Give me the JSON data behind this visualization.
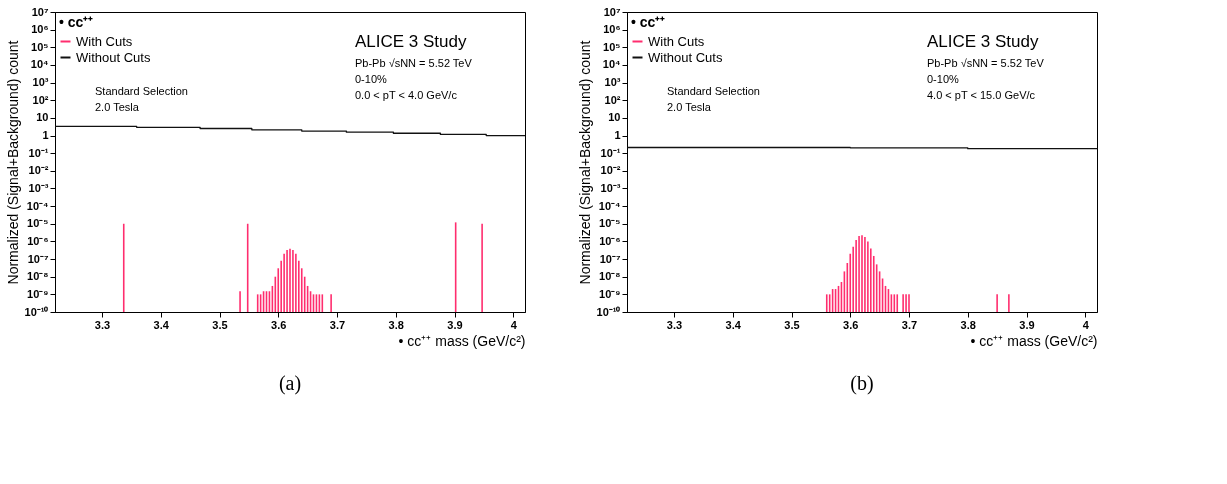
{
  "chart_data": [
    {
      "type": "step",
      "xlabel": "• cc⁺⁺ mass (GeV/c²)",
      "ylabel": "Normalized (Signal+Background) count",
      "legend_title": "• cc⁺⁺",
      "legend": "top left",
      "log": true,
      "grid": false,
      "xlim": [
        3.22,
        4.02
      ],
      "xticks": [
        3.3,
        3.4,
        3.5,
        3.6,
        3.7,
        3.8,
        3.9,
        4
      ],
      "ylim": [
        1e-10,
        10000000.0
      ],
      "yticks": [
        {
          "value": 1e-10,
          "label": "10⁻¹⁰"
        },
        {
          "value": 1e-09,
          "label": "10⁻⁹"
        },
        {
          "value": 1e-08,
          "label": "10⁻⁸"
        },
        {
          "value": 1e-07,
          "label": "10⁻⁷"
        },
        {
          "value": 1e-06,
          "label": "10⁻⁶"
        },
        {
          "value": 1e-05,
          "label": "10⁻⁵"
        },
        {
          "value": 0.0001,
          "label": "10⁻⁴"
        },
        {
          "value": 0.001,
          "label": "10⁻³"
        },
        {
          "value": 0.01,
          "label": "10⁻²"
        },
        {
          "value": 0.1,
          "label": "10⁻¹"
        },
        1,
        10,
        {
          "value": 100,
          "label": "10²"
        },
        {
          "value": 1000,
          "label": "10³"
        },
        {
          "value": 10000,
          "label": "10⁴"
        },
        {
          "value": 100000,
          "label": "10⁵"
        },
        {
          "value": 1000000,
          "label": "10⁶"
        },
        {
          "value": 10000000,
          "label": "10⁷"
        }
      ],
      "series": [
        {
          "name": "With Cuts",
          "type": "bar",
          "color": "#ff2d6e",
          "x": [
            3.337,
            3.535,
            3.548,
            3.565,
            3.57,
            3.575,
            3.58,
            3.585,
            3.59,
            3.595,
            3.6,
            3.605,
            3.61,
            3.615,
            3.62,
            3.625,
            3.63,
            3.635,
            3.64,
            3.645,
            3.65,
            3.655,
            3.66,
            3.665,
            3.67,
            3.675,
            3.69,
            3.902,
            3.947
          ],
          "values": [
            1e-05,
            1.5e-09,
            1e-05,
            1e-09,
            1e-09,
            1.5e-09,
            1.5e-09,
            1.5e-09,
            3e-09,
            1e-08,
            3e-08,
            8e-08,
            2e-07,
            3.3e-07,
            3.8e-07,
            3.3e-07,
            2e-07,
            8e-08,
            3e-08,
            1e-08,
            3e-09,
            1.5e-09,
            1e-09,
            1e-09,
            1e-09,
            1e-09,
            1e-09,
            1.2e-05,
            1e-05
          ]
        },
        {
          "name": "Without Cuts",
          "color": "#111111",
          "x": [
            3.22,
            3.359,
            3.467,
            3.555,
            3.64,
            3.716,
            3.796,
            3.876,
            3.954,
            4.02
          ],
          "values": [
            3.3,
            2.9,
            2.5,
            2.1,
            1.8,
            1.55,
            1.35,
            1.15,
            1.0,
            1.0
          ]
        }
      ],
      "annotations": [
        "Standard Selection",
        "2.0 Tesla",
        "ALICE 3 Study",
        "Pb-Pb √sNN = 5.52 TeV",
        "0-10%",
        "0.0 < pT < 4.0 GeV/c",
        "(a)"
      ]
    },
    {
      "type": "step",
      "xlabel": "• cc⁺⁺ mass (GeV/c²)",
      "ylabel": "Normalized (Signal+Background) count",
      "legend_title": "• cc⁺⁺",
      "legend": "top left",
      "log": true,
      "grid": false,
      "xlim": [
        3.22,
        4.02
      ],
      "xticks": [
        3.3,
        3.4,
        3.5,
        3.6,
        3.7,
        3.8,
        3.9,
        4
      ],
      "ylim": [
        1e-10,
        10000000.0
      ],
      "yticks": [
        {
          "value": 1e-10,
          "label": "10⁻¹⁰"
        },
        {
          "value": 1e-09,
          "label": "10⁻⁹"
        },
        {
          "value": 1e-08,
          "label": "10⁻⁸"
        },
        {
          "value": 1e-07,
          "label": "10⁻⁷"
        },
        {
          "value": 1e-06,
          "label": "10⁻⁶"
        },
        {
          "value": 1e-05,
          "label": "10⁻⁵"
        },
        {
          "value": 0.0001,
          "label": "10⁻⁴"
        },
        {
          "value": 0.001,
          "label": "10⁻³"
        },
        {
          "value": 0.01,
          "label": "10⁻²"
        },
        {
          "value": 0.1,
          "label": "10⁻¹"
        },
        1,
        10,
        {
          "value": 100,
          "label": "10²"
        },
        {
          "value": 1000,
          "label": "10³"
        },
        {
          "value": 10000,
          "label": "10⁴"
        },
        {
          "value": 100000,
          "label": "10⁵"
        },
        {
          "value": 1000000,
          "label": "10⁶"
        },
        {
          "value": 10000000,
          "label": "10⁷"
        }
      ],
      "series": [
        {
          "name": "With Cuts",
          "type": "bar",
          "color": "#ff2d6e",
          "x": [
            3.56,
            3.565,
            3.57,
            3.575,
            3.58,
            3.585,
            3.59,
            3.595,
            3.6,
            3.605,
            3.61,
            3.615,
            3.62,
            3.625,
            3.63,
            3.635,
            3.64,
            3.645,
            3.65,
            3.655,
            3.66,
            3.665,
            3.67,
            3.675,
            3.68,
            3.69,
            3.695,
            3.7,
            3.85,
            3.87
          ],
          "values": [
            1e-09,
            1e-09,
            2e-09,
            2e-09,
            3e-09,
            5e-09,
            2e-08,
            6e-08,
            2e-07,
            5e-07,
            1.2e-06,
            2e-06,
            2.2e-06,
            1.8e-06,
            1e-06,
            4e-07,
            1.5e-07,
            5e-08,
            2e-08,
            8e-09,
            3e-09,
            2e-09,
            1e-09,
            1e-09,
            1e-09,
            1e-09,
            1e-09,
            1e-09,
            1e-09,
            1e-09
          ]
        },
        {
          "name": "Without Cuts",
          "color": "#111111",
          "x": [
            3.22,
            3.6,
            3.8,
            4.02
          ],
          "values": [
            0.21,
            0.2,
            0.18,
            0.17
          ]
        }
      ],
      "annotations": [
        "Standard Selection",
        "2.0 Tesla",
        "ALICE 3 Study",
        "Pb-Pb √sNN = 5.52 TeV",
        "0-10%",
        "4.0 < pT < 15.0 GeV/c",
        "(b)"
      ]
    }
  ]
}
